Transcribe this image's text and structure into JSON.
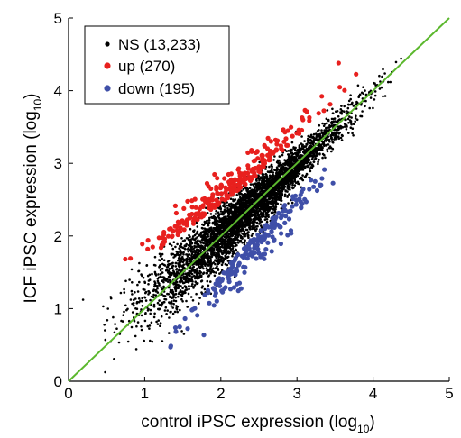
{
  "chart_data": {
    "type": "scatter",
    "xlabel": "control iPSC expression (log",
    "xlabel_sub": "10",
    "xlabel_close": ")",
    "ylabel": "ICF iPSC expression (log",
    "ylabel_sub": "10",
    "ylabel_close": ")",
    "xlim": [
      0,
      5
    ],
    "ylim": [
      0,
      5
    ],
    "x_ticks": [
      "0",
      "1",
      "2",
      "3",
      "4",
      "5"
    ],
    "y_ticks": [
      "0",
      "1",
      "2",
      "3",
      "4",
      "5"
    ],
    "legend_position": "top-left",
    "grid": false,
    "reference_line": {
      "from": [
        0,
        0
      ],
      "to": [
        5,
        5
      ],
      "color": "#5cb82e"
    },
    "series": [
      {
        "name": "NS (13,233)",
        "color": "#000000",
        "count": 13233
      },
      {
        "name": "up (270)",
        "color": "#e8201e",
        "count": 270
      },
      {
        "name": "down (195)",
        "color": "#3f4fa8",
        "count": 195
      }
    ]
  }
}
